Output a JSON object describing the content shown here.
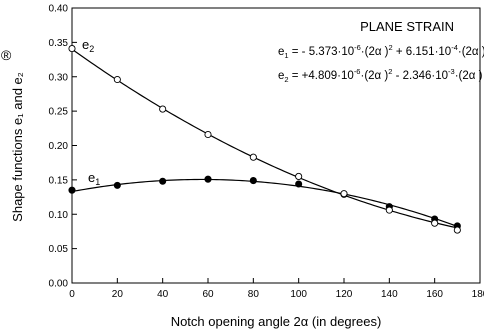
{
  "chart_data": {
    "type": "line",
    "title": "",
    "xlabel": "Notch opening angle 2α (in degrees)",
    "ylabel": "Shape functions e₁ and e₂",
    "xlim": [
      0,
      180
    ],
    "ylim": [
      0.0,
      0.4
    ],
    "xticks": [
      "0",
      "20",
      "40",
      "60",
      "80",
      "100",
      "120",
      "140",
      "160",
      "180"
    ],
    "yticks": [
      "0.00",
      "0.05",
      "0.10",
      "0.15",
      "0.20",
      "0.25",
      "0.30",
      "0.35",
      "0.40"
    ],
    "grid": false,
    "legend": "none",
    "series": [
      {
        "name": "e1",
        "marker": "filled-circle",
        "x": [
          0,
          20,
          40,
          60,
          80,
          100,
          120,
          140,
          160,
          170
        ],
        "y": [
          0.135,
          0.142,
          0.148,
          0.151,
          0.149,
          0.144,
          0.129,
          0.111,
          0.093,
          0.083
        ],
        "fit": {
          "a": -5.373e-06,
          "b": 0.0006151,
          "c": 0.133
        }
      },
      {
        "name": "e2",
        "marker": "open-circle",
        "x": [
          0,
          20,
          40,
          60,
          80,
          100,
          120,
          140,
          160,
          170
        ],
        "y": [
          0.341,
          0.296,
          0.253,
          0.216,
          0.183,
          0.155,
          0.13,
          0.106,
          0.087,
          0.077
        ],
        "fit": {
          "a": 4.809e-06,
          "b": -0.002346,
          "c": 0.34
        }
      }
    ],
    "annotations": {
      "heading": "PLANE STRAIN",
      "e1_label": "e",
      "e1_sub": "1",
      "e2_label": "e",
      "e2_sub": "2",
      "eq1": {
        "lead": "e",
        "lead_sub": "1",
        "p1": " = - 5.373·10",
        "exp1": "-6",
        "p2": "·(2α )",
        "exp2": "2",
        "p3": " + 6.151·10",
        "exp3": "-4",
        "p4": "·(2α ) + 0.1330"
      },
      "eq2": {
        "lead": "e",
        "lead_sub": "2",
        "p1": " = +4.809·10",
        "exp1": "-6",
        "p2": "·(2α )",
        "exp2": "2",
        "p3": " - 2.346·10",
        "exp3": "-3",
        "p4": "·(2α ) + 0.3400"
      }
    },
    "corner_mark": "®"
  }
}
